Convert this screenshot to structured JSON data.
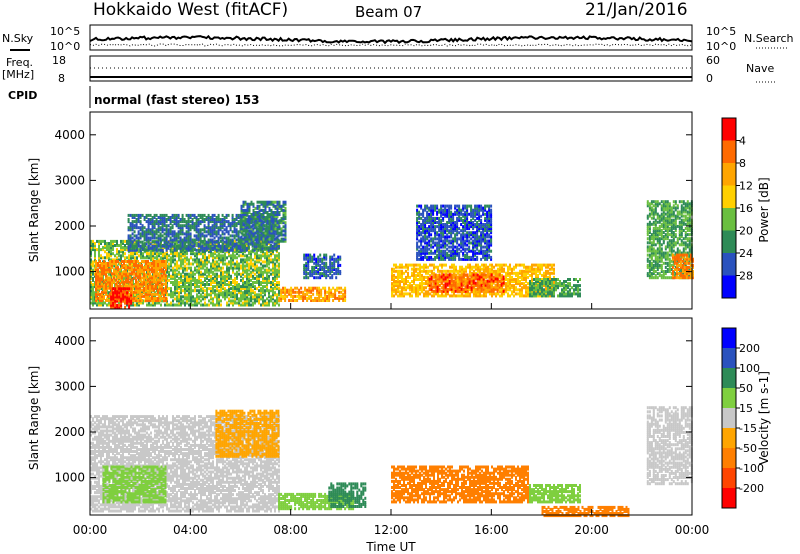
{
  "header": {
    "radar": "Hokkaido West (fitACF)",
    "beam": "Beam 07",
    "date": "21/Jan/2016"
  },
  "noise_panel": {
    "left_label": "N.Sky",
    "left_ticks": [
      "10^5",
      "10^0"
    ],
    "right_ticks": [
      "10^5",
      "10^0"
    ],
    "right_label": "N.Search"
  },
  "freq_panel": {
    "left_label": "Freq.",
    "left_unit": "[MHz]",
    "left_ticks": [
      "18",
      "8"
    ],
    "right_ticks": [
      "60",
      "0"
    ],
    "right_label": "Nave"
  },
  "cpid": {
    "label": "CPID",
    "value": "normal (fast stereo) 153"
  },
  "colors": {
    "power": [
      "#0000ff",
      "#2a52be",
      "#2e8b57",
      "#6abf40",
      "#ffd000",
      "#ffa500",
      "#ff6a00",
      "#ff0000"
    ],
    "velocity": [
      "#ff0000",
      "#ff4500",
      "#ff7f00",
      "#ffa500",
      "#c8c8c8",
      "#7fcf3f",
      "#2e8b57",
      "#2a52be",
      "#0000ff"
    ]
  },
  "chart_data": [
    {
      "type": "heatmap",
      "name": "power",
      "xlabel": "",
      "ylabel": "Slant Range [km]",
      "ylim": [
        180,
        4500
      ],
      "yticks": [
        1000,
        2000,
        3000,
        4000
      ],
      "xticks": [
        "00:00",
        "04:00",
        "08:00",
        "12:00",
        "16:00",
        "20:00",
        "00:00"
      ],
      "colorbar": {
        "label": "Power [dB]",
        "ticks": [
          4,
          8,
          12,
          16,
          20,
          24,
          28
        ]
      },
      "regions": [
        {
          "t0": 0.0,
          "t1": 7.5,
          "r0": 300,
          "r1": 1700,
          "value": 14
        },
        {
          "t0": 0.2,
          "t1": 3.0,
          "r0": 400,
          "r1": 1300,
          "value": 24
        },
        {
          "t0": 0.8,
          "t1": 1.6,
          "r0": 250,
          "r1": 700,
          "value": 29
        },
        {
          "t0": 1.5,
          "t1": 7.5,
          "r0": 1500,
          "r1": 2300,
          "value": 8
        },
        {
          "t0": 6.0,
          "t1": 7.8,
          "r0": 1700,
          "r1": 2600,
          "value": 9
        },
        {
          "t0": 7.5,
          "t1": 10.2,
          "r0": 400,
          "r1": 700,
          "value": 22
        },
        {
          "t0": 8.5,
          "t1": 10.0,
          "r0": 900,
          "r1": 1400,
          "value": 7
        },
        {
          "t0": 12.0,
          "t1": 18.5,
          "r0": 500,
          "r1": 1200,
          "value": 20
        },
        {
          "t0": 13.5,
          "t1": 16.5,
          "r0": 600,
          "r1": 1000,
          "value": 26
        },
        {
          "t0": 17.5,
          "t1": 19.5,
          "r0": 500,
          "r1": 900,
          "value": 12
        },
        {
          "t0": 13.0,
          "t1": 16.0,
          "r0": 1300,
          "r1": 2500,
          "value": 6
        },
        {
          "t0": 22.2,
          "t1": 24.0,
          "r0": 900,
          "r1": 2600,
          "value": 12
        },
        {
          "t0": 23.2,
          "t1": 24.0,
          "r0": 900,
          "r1": 1400,
          "value": 24
        }
      ]
    },
    {
      "type": "heatmap",
      "name": "velocity",
      "xlabel": "Time UT",
      "ylabel": "Slant Range [km]",
      "ylim": [
        180,
        4500
      ],
      "yticks": [
        1000,
        2000,
        3000,
        4000
      ],
      "xticks": [
        "00:00",
        "04:00",
        "08:00",
        "12:00",
        "16:00",
        "20:00",
        "00:00"
      ],
      "colorbar": {
        "label": "Velocity [m s-1]",
        "ticks": [
          200,
          100,
          50,
          15,
          -15,
          -50,
          -100,
          -200
        ]
      },
      "regions": [
        {
          "t0": 0.0,
          "t1": 7.5,
          "r0": 300,
          "r1": 2400,
          "value": 0
        },
        {
          "t0": 0.5,
          "t1": 3.0,
          "r0": 500,
          "r1": 1300,
          "value": 40
        },
        {
          "t0": 5.0,
          "t1": 7.5,
          "r0": 1500,
          "r1": 2500,
          "value": -30
        },
        {
          "t0": 7.5,
          "t1": 10.5,
          "r0": 350,
          "r1": 700,
          "value": 30
        },
        {
          "t0": 9.5,
          "t1": 11.0,
          "r0": 400,
          "r1": 900,
          "value": 60
        },
        {
          "t0": 12.0,
          "t1": 17.5,
          "r0": 500,
          "r1": 1300,
          "value": -60
        },
        {
          "t0": 17.5,
          "t1": 19.5,
          "r0": 500,
          "r1": 900,
          "value": 30
        },
        {
          "t0": 22.2,
          "t1": 24.0,
          "r0": 900,
          "r1": 2600,
          "value": 0
        },
        {
          "t0": 18.0,
          "t1": 21.5,
          "r0": 200,
          "r1": 400,
          "value": -80
        }
      ]
    }
  ]
}
